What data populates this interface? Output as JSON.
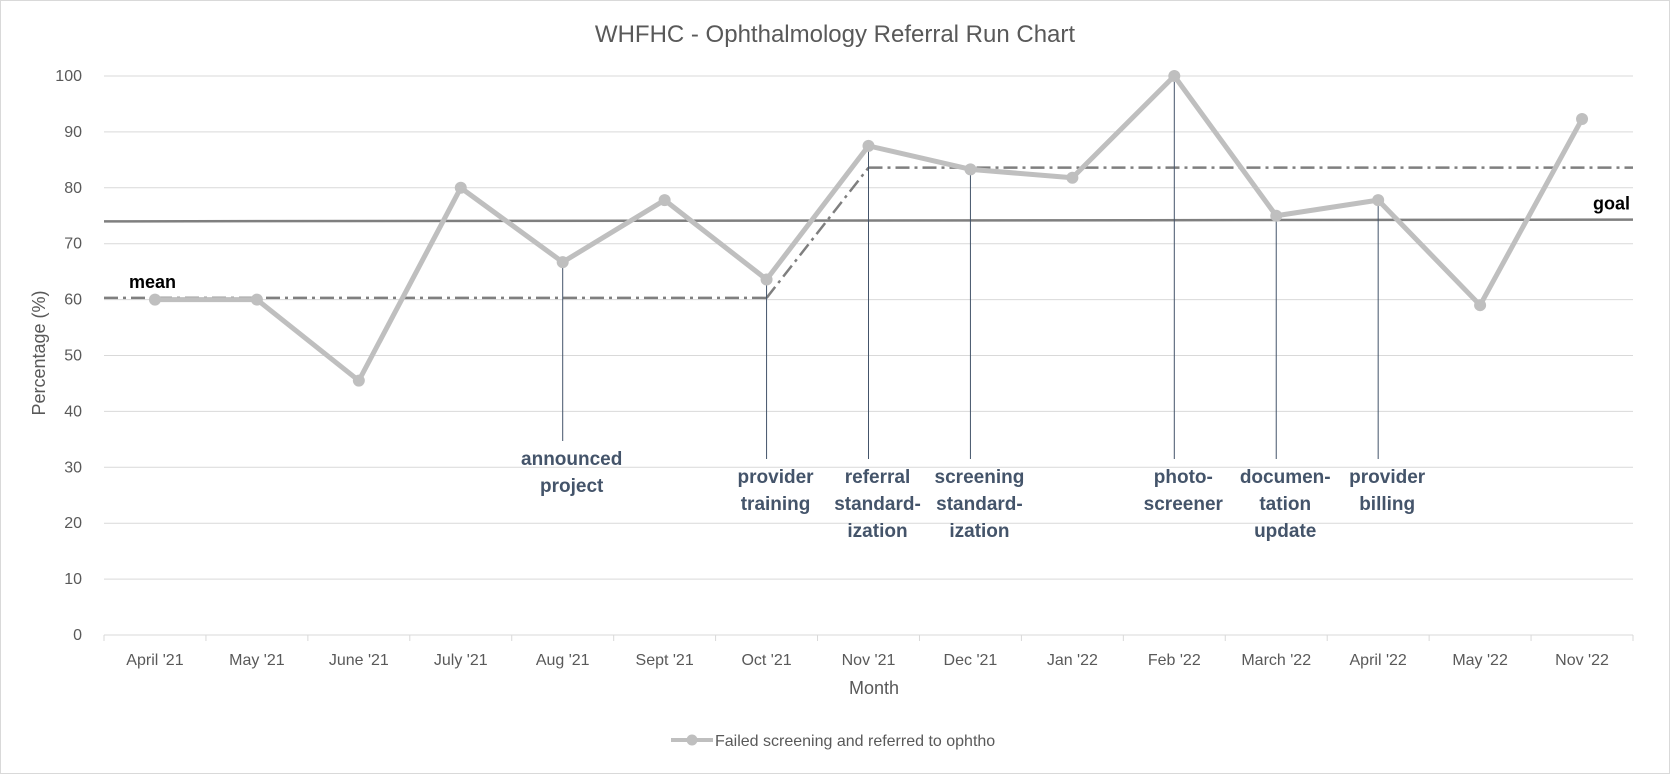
{
  "chart_data": {
    "type": "line",
    "title": "WHFHC - Ophthalmology Referral Run Chart",
    "xlabel": "Month",
    "ylabel": "Percentage (%)",
    "ylim": [
      0,
      100
    ],
    "yticks": [
      0,
      10,
      20,
      30,
      40,
      50,
      60,
      70,
      80,
      90,
      100
    ],
    "grid": true,
    "legend_position": "bottom",
    "categories": [
      "April '21",
      "May '21",
      "June '21",
      "July '21",
      "Aug '21",
      "Sept '21",
      "Oct '21",
      "Nov '21",
      "Dec '21",
      "Jan '22",
      "Feb '22",
      "March '22",
      "April '22",
      "May '22",
      "Nov '22"
    ],
    "series": [
      {
        "name": "Failed screening and referred to ophtho",
        "values": [
          60,
          60,
          45.5,
          80,
          66.7,
          77.8,
          63.6,
          87.5,
          83.3,
          81.8,
          100,
          75,
          77.8,
          59,
          92.3
        ],
        "color": "#bfbfbf"
      }
    ],
    "reference_lines": {
      "goal": {
        "label": "goal",
        "value_start": 74,
        "value_end": 74.3,
        "color": "#7f7f7f"
      },
      "mean": {
        "label": "mean",
        "color": "#7f7f7f",
        "segments": [
          {
            "from_category": "April '21",
            "to_category": "Oct '21",
            "value": 60.3
          },
          {
            "from_category": "Oct '21",
            "to_category": "Nov '21",
            "value_start": 60.3,
            "value_end": 83.6
          },
          {
            "from_category": "Nov '21",
            "to_category": "Nov '22",
            "value": 83.6
          }
        ]
      }
    },
    "annotations": [
      {
        "category": "Aug '21",
        "lines": [
          "announced",
          "project"
        ]
      },
      {
        "category": "Oct '21",
        "lines": [
          "provider",
          "training"
        ]
      },
      {
        "category": "Nov '21",
        "lines": [
          "referral",
          "standard-",
          "ization"
        ]
      },
      {
        "category": "Dec '21",
        "lines": [
          "screening",
          "standard-",
          "ization"
        ]
      },
      {
        "category": "Feb '22",
        "lines": [
          "photo-",
          "screener"
        ]
      },
      {
        "category": "March '22",
        "lines": [
          "documen-",
          "tation",
          "update"
        ]
      },
      {
        "category": "April '22",
        "lines": [
          "provider",
          "billing"
        ]
      }
    ]
  }
}
